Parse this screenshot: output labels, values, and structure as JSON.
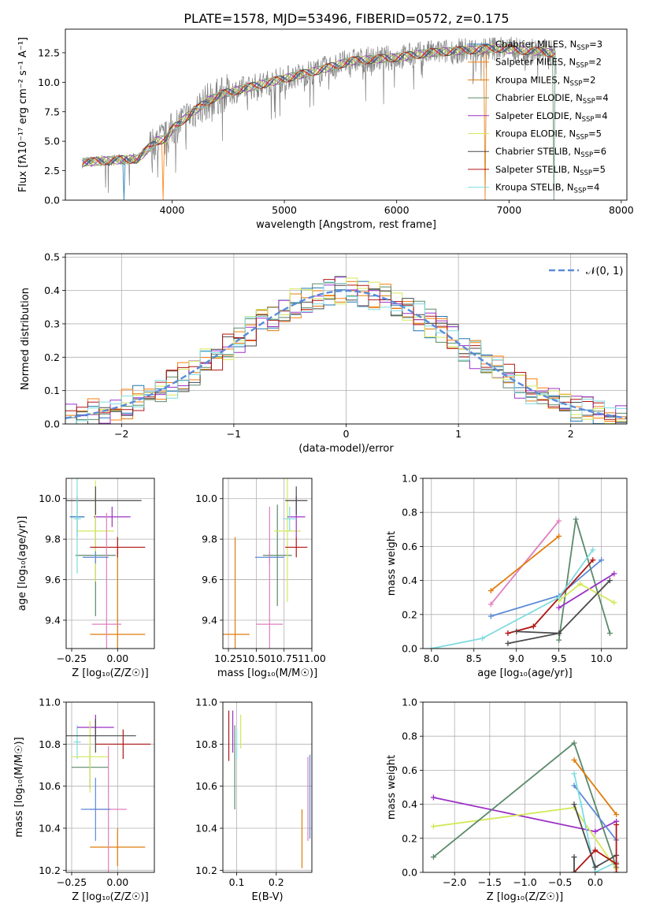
{
  "figure_title": "PLATE=1578, MJD=53496, FIBERID=0572, z=0.175",
  "colors": {
    "chabrier_miles": "#1f77b4",
    "salpeter_miles": "#ff7f0e",
    "kroupa_miles": "#e07b0c",
    "chabrier_elodie": "#5b8a6a",
    "salpeter_elodie": "#9b30c6",
    "kroupa_elodie": "#d4e85a",
    "chabrier_stelib": "#4a4a4a",
    "salpeter_stelib": "#b01515",
    "kroupa_stelib": "#7fdbe0",
    "data": "#808080",
    "normal": "#5b8bd9",
    "pink": "#e07fbf",
    "blue": "#5b8bd9"
  },
  "chart_data": [
    {
      "id": "spectrum",
      "type": "line",
      "title": "PLATE=1578, MJD=53496, FIBERID=0572, z=0.175",
      "xlabel": "wavelength [Angstrom, rest frame]",
      "ylabel": "Flux [fλ10⁻¹⁷ erg cm⁻² s⁻¹ A⁻¹]",
      "xlim": [
        3050,
        8050
      ],
      "ylim": [
        0,
        14.5
      ],
      "xticks": [
        4000,
        5000,
        6000,
        7000,
        8000
      ],
      "yticks": [
        0.0,
        2.5,
        5.0,
        7.5,
        10.0,
        12.5
      ],
      "xtick_labels": [
        "4000",
        "5000",
        "6000",
        "7000",
        "8000"
      ],
      "ytick_labels": [
        "0.0",
        "2.5",
        "5.0",
        "7.5",
        "10.0",
        "12.5"
      ],
      "legend_position": "top-right",
      "legend": [
        {
          "label": "Chabrier MILES, N_SSP=3",
          "text": "Chabrier MILES, N",
          "sub": "SSP",
          "suffix": "=3",
          "color": "#1f77b4"
        },
        {
          "label": "Salpeter MILES, N_SSP=2",
          "text": "Salpeter MILES, N",
          "sub": "SSP",
          "suffix": "=2",
          "color": "#ff7f0e"
        },
        {
          "label": "Kroupa MILES, N_SSP=2",
          "text": "Kroupa MILES, N",
          "sub": "SSP",
          "suffix": "=2",
          "color": "#e07b0c"
        },
        {
          "label": "Chabrier ELODIE, N_SSP=4",
          "text": "Chabrier ELODIE, N",
          "sub": "SSP",
          "suffix": "=4",
          "color": "#5b8a6a"
        },
        {
          "label": "Salpeter ELODIE, N_SSP=4",
          "text": "Salpeter ELODIE, N",
          "sub": "SSP",
          "suffix": "=4",
          "color": "#9b30c6"
        },
        {
          "label": "Kroupa ELODIE, N_SSP=5",
          "text": "Kroupa ELODIE, N",
          "sub": "SSP",
          "suffix": "=5",
          "color": "#d4e85a"
        },
        {
          "label": "Chabrier STELIB, N_SSP=6",
          "text": "Chabrier STELIB, N",
          "sub": "SSP",
          "suffix": "=6",
          "color": "#4a4a4a"
        },
        {
          "label": "Salpeter STELIB, N_SSP=5",
          "text": "Salpeter STELIB, N",
          "sub": "SSP",
          "suffix": "=5",
          "color": "#b01515"
        },
        {
          "label": "Kroupa STELIB, N_SSP=4",
          "text": "Kroupa STELIB, N",
          "sub": "SSP",
          "suffix": "=4",
          "color": "#7fdbe0"
        }
      ],
      "continuum": [
        [
          3200,
          3.2
        ],
        [
          3500,
          3.4
        ],
        [
          3700,
          3.5
        ],
        [
          3850,
          5.0
        ],
        [
          3950,
          5.2
        ],
        [
          4000,
          6.0
        ],
        [
          4150,
          7.2
        ],
        [
          4300,
          8.3
        ],
        [
          4450,
          9.0
        ],
        [
          4700,
          9.6
        ],
        [
          5000,
          10.3
        ],
        [
          5300,
          11.0
        ],
        [
          5600,
          11.8
        ],
        [
          6000,
          12.1
        ],
        [
          6300,
          12.5
        ],
        [
          6600,
          12.7
        ],
        [
          6900,
          12.9
        ],
        [
          7100,
          12.7
        ],
        [
          7300,
          12.6
        ],
        [
          7420,
          12.4
        ]
      ],
      "model_dropouts": [
        3570,
        3920,
        6790,
        7400
      ]
    },
    {
      "id": "residuals",
      "type": "histogram",
      "xlabel": "(data-model)/error",
      "ylabel": "Normed distribution",
      "xlim": [
        -2.5,
        2.5
      ],
      "ylim": [
        0,
        0.51
      ],
      "xticks": [
        -2,
        -1,
        0,
        1,
        2
      ],
      "yticks": [
        0.0,
        0.1,
        0.2,
        0.3,
        0.4,
        0.5
      ],
      "xtick_labels": [
        "−2",
        "−1",
        "0",
        "1",
        "2"
      ],
      "ytick_labels": [
        "0.0",
        "0.1",
        "0.2",
        "0.3",
        "0.4",
        "0.5"
      ],
      "bin_width": 0.1,
      "legend_position": "top-right",
      "reference_curve": {
        "label": "𝒩(0, 1)",
        "mean": 0,
        "sigma": 1,
        "style": "dashed"
      }
    },
    {
      "id": "age_vs_Z",
      "type": "errorbar",
      "xlabel": "Z [log₁₀(Z/Z☉)]",
      "ylabel": "age  [log₁₀(age/yr)]",
      "xlim": [
        -0.28,
        0.2
      ],
      "ylim": [
        9.26,
        10.1
      ],
      "xticks": [
        -0.25,
        0.0
      ],
      "yticks": [
        9.4,
        9.6,
        9.8,
        10.0
      ],
      "xtick_labels": [
        "−0.25",
        "0.00"
      ],
      "ytick_labels": [
        "9.4",
        "9.6",
        "9.8",
        "10.0"
      ],
      "points": [
        {
          "x": -0.22,
          "y": 9.91,
          "xerr": 0.04,
          "yerr": 0.1,
          "color": "#1f77b4"
        },
        {
          "x": 0.0,
          "y": 9.33,
          "xerr": 0.15,
          "yerr": 0.42,
          "color": "#e07b0c"
        },
        {
          "x": -0.12,
          "y": 9.72,
          "xerr": 0.11,
          "yerr": 0.3,
          "color": "#5b8a6a"
        },
        {
          "x": -0.03,
          "y": 9.91,
          "xerr": 0.1,
          "yerr": 0.05,
          "color": "#9b30c6"
        },
        {
          "x": -0.12,
          "y": 9.84,
          "xerr": 0.1,
          "yerr": 0.25,
          "color": "#d4e85a"
        },
        {
          "x": -0.12,
          "y": 9.99,
          "xerr": 0.25,
          "yerr": 0.07,
          "color": "#4a4a4a"
        },
        {
          "x": 0.0,
          "y": 9.76,
          "xerr": 0.15,
          "yerr": 0.05,
          "color": "#b01515"
        },
        {
          "x": -0.22,
          "y": 9.9,
          "xerr": 0.02,
          "yerr": 0.27,
          "color": "#7fdbe0"
        },
        {
          "x": -0.06,
          "y": 9.38,
          "xerr": 0.08,
          "yerr": 0.55,
          "color": "#e07fbf"
        },
        {
          "x": -0.12,
          "y": 9.71,
          "xerr": 0.07,
          "yerr": 0.03,
          "color": "#5b8bd9"
        }
      ]
    },
    {
      "id": "age_vs_mass",
      "type": "errorbar",
      "xlabel": "mass [log₁₀(M/M☉)]",
      "ylabel": "",
      "xlim": [
        10.2,
        11.0
      ],
      "ylim": [
        9.26,
        10.1
      ],
      "xticks": [
        10.25,
        10.5,
        10.75,
        11.0
      ],
      "yticks": [
        9.4,
        9.6,
        9.8,
        10.0
      ],
      "xtick_labels": [
        "10.25",
        "10.50",
        "10.75",
        "11.00"
      ],
      "ytick_labels": [
        "9.4",
        "9.6",
        "9.8",
        "10.0"
      ],
      "points": [
        {
          "x": 10.31,
          "y": 9.33,
          "xerr": 0.13,
          "yerr": 0.48,
          "color": "#e07b0c"
        },
        {
          "x": 10.62,
          "y": 9.71,
          "xerr": 0.13,
          "yerr": 0.03,
          "color": "#5b8bd9"
        },
        {
          "x": 10.69,
          "y": 9.72,
          "xerr": 0.13,
          "yerr": 0.25,
          "color": "#5b8a6a"
        },
        {
          "x": 10.62,
          "y": 9.38,
          "xerr": 0.12,
          "yerr": 0.58,
          "color": "#e07fbf"
        },
        {
          "x": 10.78,
          "y": 9.84,
          "xerr": 0.12,
          "yerr": 0.35,
          "color": "#d4e85a"
        },
        {
          "x": 10.86,
          "y": 9.91,
          "xerr": 0.08,
          "yerr": 0.1,
          "color": "#9b30c6"
        },
        {
          "x": 10.86,
          "y": 9.99,
          "xerr": 0.1,
          "yerr": 0.07,
          "color": "#4a4a4a"
        },
        {
          "x": 10.8,
          "y": 9.9,
          "xerr": 0.06,
          "yerr": 0.06,
          "color": "#7fdbe0"
        },
        {
          "x": 10.86,
          "y": 9.76,
          "xerr": 0.1,
          "yerr": 0.05,
          "color": "#b01515"
        }
      ]
    },
    {
      "id": "massweight_vs_age",
      "type": "line",
      "xlabel": "age  [log₁₀(age/yr)]",
      "ylabel": "mass weight",
      "xlim": [
        7.9,
        10.3
      ],
      "ylim": [
        0,
        1.0
      ],
      "xticks": [
        8.0,
        8.5,
        9.0,
        9.5,
        10.0
      ],
      "yticks": [
        0.0,
        0.2,
        0.4,
        0.6,
        0.8,
        1.0
      ],
      "xtick_labels": [
        "8.0",
        "8.5",
        "9.0",
        "9.5",
        "10.0"
      ],
      "ytick_labels": [
        "0.0",
        "0.2",
        "0.4",
        "0.6",
        "0.8",
        "1.0"
      ],
      "series": [
        {
          "color": "#e07fbf",
          "points": [
            [
              8.7,
              0.26
            ],
            [
              9.5,
              0.75
            ]
          ]
        },
        {
          "color": "#e07b0c",
          "points": [
            [
              8.7,
              0.34
            ],
            [
              9.5,
              0.66
            ]
          ]
        },
        {
          "color": "#5b8bd9",
          "points": [
            [
              8.7,
              0.19
            ],
            [
              9.5,
              0.31
            ],
            [
              10.0,
              0.52
            ]
          ]
        },
        {
          "color": "#5b8a6a",
          "points": [
            [
              9.5,
              0.05
            ],
            [
              9.7,
              0.76
            ],
            [
              10.1,
              0.09
            ]
          ]
        },
        {
          "color": "#9b30c6",
          "points": [
            [
              9.5,
              0.24
            ],
            [
              10.15,
              0.44
            ]
          ]
        },
        {
          "color": "#d4e85a",
          "points": [
            [
              9.5,
              0.28
            ],
            [
              9.75,
              0.38
            ],
            [
              10.15,
              0.27
            ]
          ]
        },
        {
          "color": "#4a4a4a",
          "points": [
            [
              8.9,
              0.03
            ],
            [
              9.5,
              0.09
            ],
            [
              10.1,
              0.4
            ]
          ]
        },
        {
          "color": "#b01515",
          "points": [
            [
              8.9,
              0.09
            ],
            [
              9.2,
              0.13
            ],
            [
              9.9,
              0.52
            ]
          ]
        },
        {
          "color": "#7fdbe0",
          "points": [
            [
              8.0,
              0.0
            ],
            [
              8.6,
              0.06
            ],
            [
              9.5,
              0.3
            ],
            [
              9.9,
              0.58
            ]
          ]
        },
        {
          "color": "#4a4a4a",
          "points": [
            [
              9.0,
              0.1
            ],
            [
              9.5,
              0.09
            ]
          ]
        }
      ]
    },
    {
      "id": "mass_vs_Z",
      "type": "errorbar",
      "xlabel": "Z [log₁₀(Z/Z☉)]",
      "ylabel": "mass [log₁₀(M/M☉)]",
      "xlim": [
        -0.28,
        0.2
      ],
      "ylim": [
        10.19,
        11.0
      ],
      "xticks": [
        -0.25,
        0.0
      ],
      "yticks": [
        10.2,
        10.4,
        10.6,
        10.8,
        11.0
      ],
      "xtick_labels": [
        "−0.25",
        "0.00"
      ],
      "ytick_labels": [
        "10.2",
        "10.4",
        "10.6",
        "10.8",
        "11.0"
      ],
      "points": [
        {
          "x": -0.22,
          "y": 10.81,
          "xerr": 0.02,
          "yerr": 0.08,
          "color": "#7fdbe0"
        },
        {
          "x": 0.0,
          "y": 10.31,
          "xerr": 0.15,
          "yerr": 0.09,
          "color": "#e07b0c"
        },
        {
          "x": -0.15,
          "y": 10.69,
          "xerr": 0.1,
          "yerr": 0.1,
          "color": "#5b8a6a"
        },
        {
          "x": -0.12,
          "y": 10.88,
          "xerr": 0.1,
          "yerr": 0.06,
          "color": "#9b30c6"
        },
        {
          "x": -0.15,
          "y": 10.74,
          "xerr": 0.1,
          "yerr": 0.17,
          "color": "#d4e85a"
        },
        {
          "x": -0.12,
          "y": 10.84,
          "xerr": 0.22,
          "yerr": 0.08,
          "color": "#4a4a4a"
        },
        {
          "x": 0.03,
          "y": 10.8,
          "xerr": 0.15,
          "yerr": 0.07,
          "color": "#b01515"
        },
        {
          "x": -0.05,
          "y": 10.49,
          "xerr": 0.1,
          "yerr": 0.3,
          "color": "#e07fbf"
        },
        {
          "x": -0.12,
          "y": 10.49,
          "xerr": 0.08,
          "yerr": 0.15,
          "color": "#5b8bd9"
        }
      ]
    },
    {
      "id": "mass_vs_ebv",
      "type": "errorbar",
      "xlabel": "E(B-V)",
      "ylabel": "",
      "xlim": [
        0.065,
        0.29
      ],
      "ylim": [
        10.19,
        11.0
      ],
      "xticks": [
        0.1,
        0.2
      ],
      "yticks": [
        10.2,
        10.4,
        10.6,
        10.8,
        11.0
      ],
      "xtick_labels": [
        "0.1",
        "0.2"
      ],
      "ytick_labels": [
        "10.2",
        "10.4",
        "10.6",
        "10.8",
        "11.0"
      ],
      "points": [
        {
          "x": 0.08,
          "y": 10.84,
          "xerr": 0,
          "yerr": 0.12,
          "color": "#b01515"
        },
        {
          "x": 0.09,
          "y": 10.86,
          "xerr": 0,
          "yerr": 0.1,
          "color": "#9b30c6"
        },
        {
          "x": 0.095,
          "y": 10.69,
          "xerr": 0,
          "yerr": 0.2,
          "color": "#5b8a6a"
        },
        {
          "x": 0.1,
          "y": 10.8,
          "xerr": 0,
          "yerr": 0.07,
          "color": "#7fdbe0"
        },
        {
          "x": 0.11,
          "y": 10.86,
          "xerr": 0,
          "yerr": 0.08,
          "color": "#d4e85a"
        },
        {
          "x": 0.265,
          "y": 10.35,
          "xerr": 0,
          "yerr": 0.14,
          "color": "#e07b0c"
        },
        {
          "x": 0.28,
          "y": 10.54,
          "xerr": 0,
          "yerr": 0.2,
          "color": "#e07fbf"
        },
        {
          "x": 0.285,
          "y": 10.55,
          "xerr": 0,
          "yerr": 0.2,
          "color": "#5b8bd9"
        }
      ]
    },
    {
      "id": "massweight_vs_Z",
      "type": "line",
      "xlabel": "Z [log₁₀(Z/Z☉)]",
      "ylabel": "mass weight",
      "xlim": [
        -2.45,
        0.45
      ],
      "ylim": [
        0,
        1.0
      ],
      "xticks": [
        -2.0,
        -1.5,
        -1.0,
        -0.5,
        0.0
      ],
      "yticks": [
        0.0,
        0.2,
        0.4,
        0.6,
        0.8,
        1.0
      ],
      "xtick_labels": [
        "−2.0",
        "−1.5",
        "−1.0",
        "−0.5",
        "0.0"
      ],
      "ytick_labels": [
        "0.0",
        "0.2",
        "0.4",
        "0.6",
        "0.8",
        "1.0"
      ],
      "series": [
        {
          "color": "#9b30c6",
          "points": [
            [
              -2.3,
              0.44
            ],
            [
              0.0,
              0.24
            ],
            [
              0.3,
              0.3
            ]
          ]
        },
        {
          "color": "#d4e85a",
          "points": [
            [
              -2.3,
              0.27
            ],
            [
              -0.3,
              0.38
            ],
            [
              0.3,
              0.02
            ]
          ]
        },
        {
          "color": "#5b8a6a",
          "points": [
            [
              -2.3,
              0.09
            ],
            [
              -0.3,
              0.76
            ],
            [
              0.3,
              0.03
            ]
          ]
        },
        {
          "color": "#e07b0c",
          "points": [
            [
              -0.3,
              0.66
            ],
            [
              0.3,
              0.34
            ]
          ]
        },
        {
          "color": "#5b8bd9",
          "points": [
            [
              -0.3,
              0.51
            ],
            [
              0.3,
              0.19
            ]
          ]
        },
        {
          "color": "#7fdbe0",
          "points": [
            [
              -0.3,
              0.58
            ],
            [
              -0.2,
              0.4
            ],
            [
              0.0,
              0.0
            ],
            [
              0.3,
              0.06
            ]
          ]
        },
        {
          "color": "#4a4a4a",
          "points": [
            [
              -0.3,
              0.4
            ],
            [
              0.0,
              0.03
            ],
            [
              0.3,
              0.1
            ]
          ]
        },
        {
          "color": "#b01515",
          "points": [
            [
              -0.3,
              0.0
            ],
            [
              0.0,
              0.13
            ],
            [
              0.3,
              0.05
            ]
          ]
        },
        {
          "color": "#b01515",
          "points": [
            [
              0.3,
              0.0
            ],
            [
              0.3,
              0.28
            ]
          ]
        },
        {
          "color": "#4a4a4a",
          "points": [
            [
              -0.3,
              0.0
            ],
            [
              -0.3,
              0.09
            ]
          ]
        }
      ]
    }
  ]
}
